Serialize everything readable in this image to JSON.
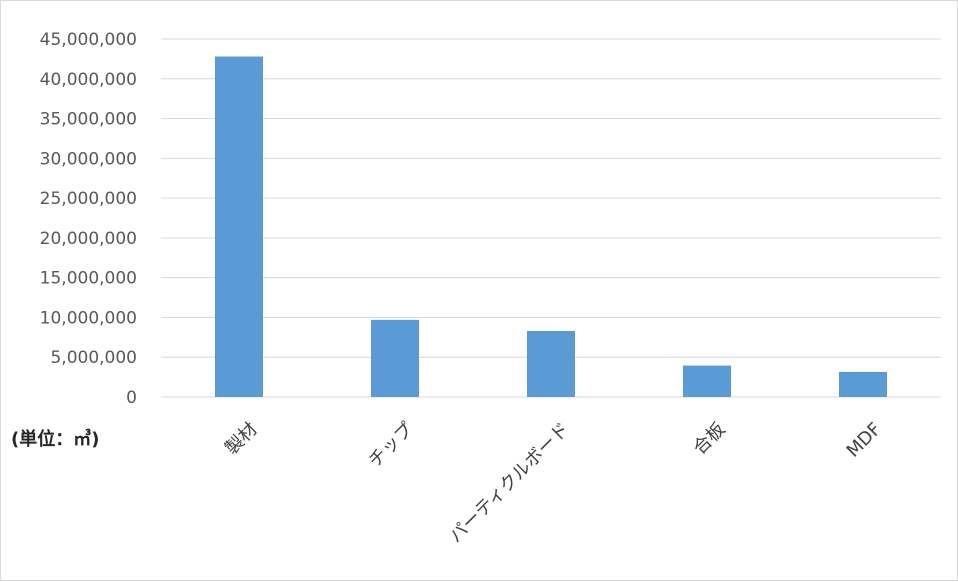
{
  "chart_data": {
    "type": "bar",
    "categories": [
      "製材",
      "チップ",
      "パーティクルボード",
      "合板",
      "MDF"
    ],
    "values": [
      42800000,
      9700000,
      8300000,
      3950000,
      3150000
    ],
    "title": "",
    "xlabel": "",
    "ylabel": "(単位：㎥)",
    "ylim": [
      0,
      45000000
    ],
    "ytick_labels": [
      "0",
      "5,000,000",
      "10,000,000",
      "15,000,000",
      "20,000,000",
      "25,000,000",
      "30,000,000",
      "35,000,000",
      "40,000,000",
      "45,000,000"
    ],
    "grid": true,
    "legend": "none",
    "bar_color": "#5b9bd5",
    "grid_color": "#d9d9d9"
  }
}
